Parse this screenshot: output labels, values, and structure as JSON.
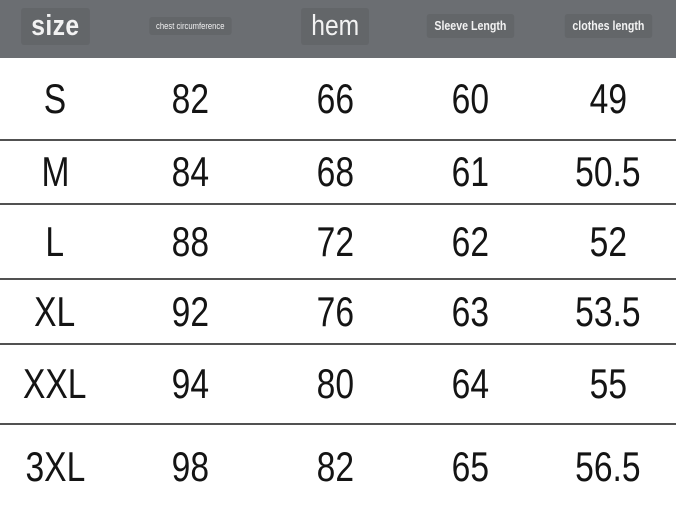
{
  "colors": {
    "header_bg": "#6b6e72",
    "header_text": "#f2f2f2",
    "divider": "#515151",
    "body_text": "#141414",
    "body_bg": "#ffffff"
  },
  "chart_data": {
    "type": "table",
    "title": "",
    "columns": [
      {
        "label": "size"
      },
      {
        "label": "chest circumference"
      },
      {
        "label": "hem"
      },
      {
        "label": "Sleeve Length"
      },
      {
        "label": "clothes length"
      }
    ],
    "rows": [
      [
        "S",
        "82",
        "66",
        "60",
        "49"
      ],
      [
        "M",
        "84",
        "68",
        "61",
        "50.5"
      ],
      [
        "L",
        "88",
        "72",
        "62",
        "52"
      ],
      [
        "XL",
        "92",
        "76",
        "63",
        "53.5"
      ],
      [
        "XXL",
        "94",
        "80",
        "64",
        "55"
      ],
      [
        "3XL",
        "98",
        "82",
        "65",
        "56.5"
      ]
    ]
  }
}
